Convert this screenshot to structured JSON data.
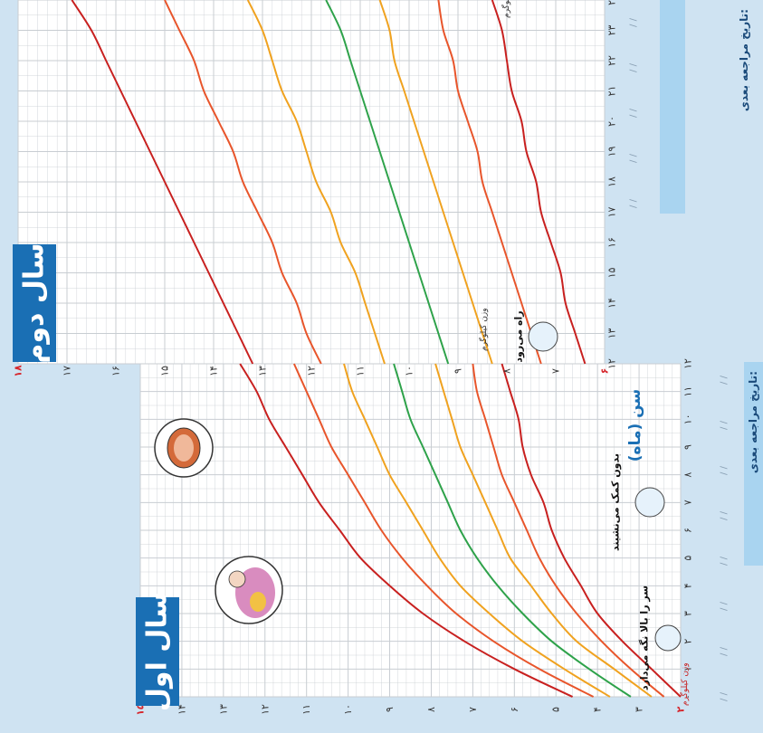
{
  "titles": {
    "year1": "سال اول",
    "year2": "سال دوم"
  },
  "axis_titles": {
    "age": "سن (ماه)",
    "weight": "وزن کیلوگرم"
  },
  "next_visit_label": "تاریخ مراجعه بعدی:",
  "next_visit_slots": [
    "/   /",
    "/   /",
    "/   /",
    "/   /",
    "/   /",
    "/   /",
    "/   /",
    "/   /",
    "/   /",
    "/   /",
    "/   /",
    "/   /"
  ],
  "milestones": {
    "head": "سر را بالا نگه می‌دارد",
    "sit": "بدون کمک می‌نشیند",
    "walk": "راه می‌رود"
  },
  "colors": {
    "background": "#cfe3f2",
    "plot": "#ffffff",
    "grid": "#c8cdd2",
    "red": "#c8201f",
    "orange": "#e8552b",
    "amber": "#f0a21f",
    "green": "#2ea24a",
    "title_box": "#1a6fb4",
    "note_box": "#a9d4f0",
    "highlight_tick": "#d6262c"
  },
  "chart_data": [
    {
      "type": "line",
      "panel": "year1",
      "title": "سال اول",
      "xlabel": "سن (ماه)",
      "ylabel": "وزن کیلوگرم",
      "x_ticks": [
        "۰",
        "۱",
        "۲",
        "۳",
        "۴",
        "۵",
        "۶",
        "۷",
        "۸",
        "۹",
        "۱۰",
        "۱۱",
        "۱۲"
      ],
      "y_ticks": [
        "۲",
        "۳",
        "۴",
        "۵",
        "۶",
        "۷",
        "۸",
        "۹",
        "۱۰",
        "۱۱",
        "۱۲",
        "۱۳",
        "۱۴",
        "۱۵"
      ],
      "xlim": [
        0,
        12
      ],
      "ylim": [
        2,
        15
      ],
      "grid": true,
      "x": [
        0,
        1,
        2,
        3,
        4,
        5,
        6,
        7,
        8,
        9,
        10,
        11,
        12
      ],
      "series": [
        {
          "color": "red",
          "values": [
            2.0,
            2.7,
            3.4,
            4.0,
            4.4,
            4.8,
            5.1,
            5.3,
            5.6,
            5.8,
            5.9,
            6.1,
            6.3
          ]
        },
        {
          "color": "orange",
          "values": [
            2.4,
            3.2,
            3.9,
            4.5,
            5.0,
            5.4,
            5.7,
            6.0,
            6.3,
            6.5,
            6.7,
            6.9,
            7.0
          ]
        },
        {
          "color": "amber",
          "values": [
            2.7,
            3.6,
            4.5,
            5.1,
            5.6,
            6.1,
            6.4,
            6.7,
            7.0,
            7.3,
            7.5,
            7.7,
            7.9
          ]
        },
        {
          "color": "green",
          "values": [
            3.2,
            4.2,
            5.1,
            5.8,
            6.4,
            6.9,
            7.3,
            7.6,
            7.9,
            8.2,
            8.5,
            8.7,
            8.9
          ]
        },
        {
          "color": "amber",
          "values": [
            3.7,
            4.8,
            5.8,
            6.6,
            7.3,
            7.8,
            8.2,
            8.6,
            9.0,
            9.3,
            9.6,
            9.9,
            10.1
          ]
        },
        {
          "color": "orange",
          "values": [
            4.1,
            5.4,
            6.5,
            7.4,
            8.1,
            8.7,
            9.2,
            9.6,
            10.0,
            10.4,
            10.7,
            11.0,
            11.3
          ]
        },
        {
          "color": "red",
          "values": [
            4.6,
            6.0,
            7.2,
            8.2,
            9.0,
            9.7,
            10.2,
            10.7,
            11.1,
            11.5,
            11.9,
            12.2,
            12.6
          ]
        }
      ]
    },
    {
      "type": "line",
      "panel": "year2",
      "title": "سال دوم",
      "xlabel": "سن (ماه)",
      "ylabel": "وزن کیلوگرم",
      "x_ticks": [
        "۱۲",
        "۱۳",
        "۱۴",
        "۱۵",
        "۱۶",
        "۱۷",
        "۱۸",
        "۱۹",
        "۲۰",
        "۲۱",
        "۲۲",
        "۲۳",
        "۲۴"
      ],
      "y_ticks": [
        "۶",
        "۷",
        "۸",
        "۹",
        "۱۰",
        "۱۱",
        "۱۲",
        "۱۳",
        "۱۴",
        "۱۵",
        "۱۶",
        "۱۷",
        "۱۸"
      ],
      "xlim": [
        12,
        24
      ],
      "ylim": [
        6,
        18
      ],
      "grid": true,
      "x": [
        12,
        13,
        14,
        15,
        16,
        17,
        18,
        19,
        20,
        21,
        22,
        23,
        24
      ],
      "series": [
        {
          "color": "red",
          "values": [
            6.4,
            6.6,
            6.8,
            6.9,
            7.1,
            7.3,
            7.4,
            7.6,
            7.7,
            7.9,
            8.0,
            8.1,
            8.3
          ]
        },
        {
          "color": "orange",
          "values": [
            7.3,
            7.5,
            7.7,
            7.9,
            8.1,
            8.3,
            8.5,
            8.6,
            8.8,
            9.0,
            9.1,
            9.3,
            9.4
          ]
        },
        {
          "color": "amber",
          "values": [
            8.3,
            8.5,
            8.7,
            8.9,
            9.1,
            9.3,
            9.5,
            9.7,
            9.9,
            10.1,
            10.3,
            10.4,
            10.6
          ]
        },
        {
          "color": "green",
          "values": [
            9.2,
            9.4,
            9.6,
            9.8,
            10.0,
            10.2,
            10.4,
            10.6,
            10.8,
            11.0,
            11.2,
            11.4,
            11.7
          ]
        },
        {
          "color": "amber",
          "values": [
            10.5,
            10.7,
            10.9,
            11.1,
            11.4,
            11.6,
            11.9,
            12.1,
            12.3,
            12.6,
            12.8,
            13.0,
            13.3
          ]
        },
        {
          "color": "orange",
          "values": [
            11.8,
            12.1,
            12.3,
            12.6,
            12.8,
            13.1,
            13.4,
            13.6,
            13.9,
            14.2,
            14.4,
            14.7,
            15.0
          ]
        },
        {
          "color": "red",
          "values": [
            13.2,
            13.5,
            13.8,
            14.1,
            14.4,
            14.7,
            15.0,
            15.3,
            15.6,
            15.9,
            16.2,
            16.5,
            16.9
          ]
        }
      ]
    }
  ]
}
